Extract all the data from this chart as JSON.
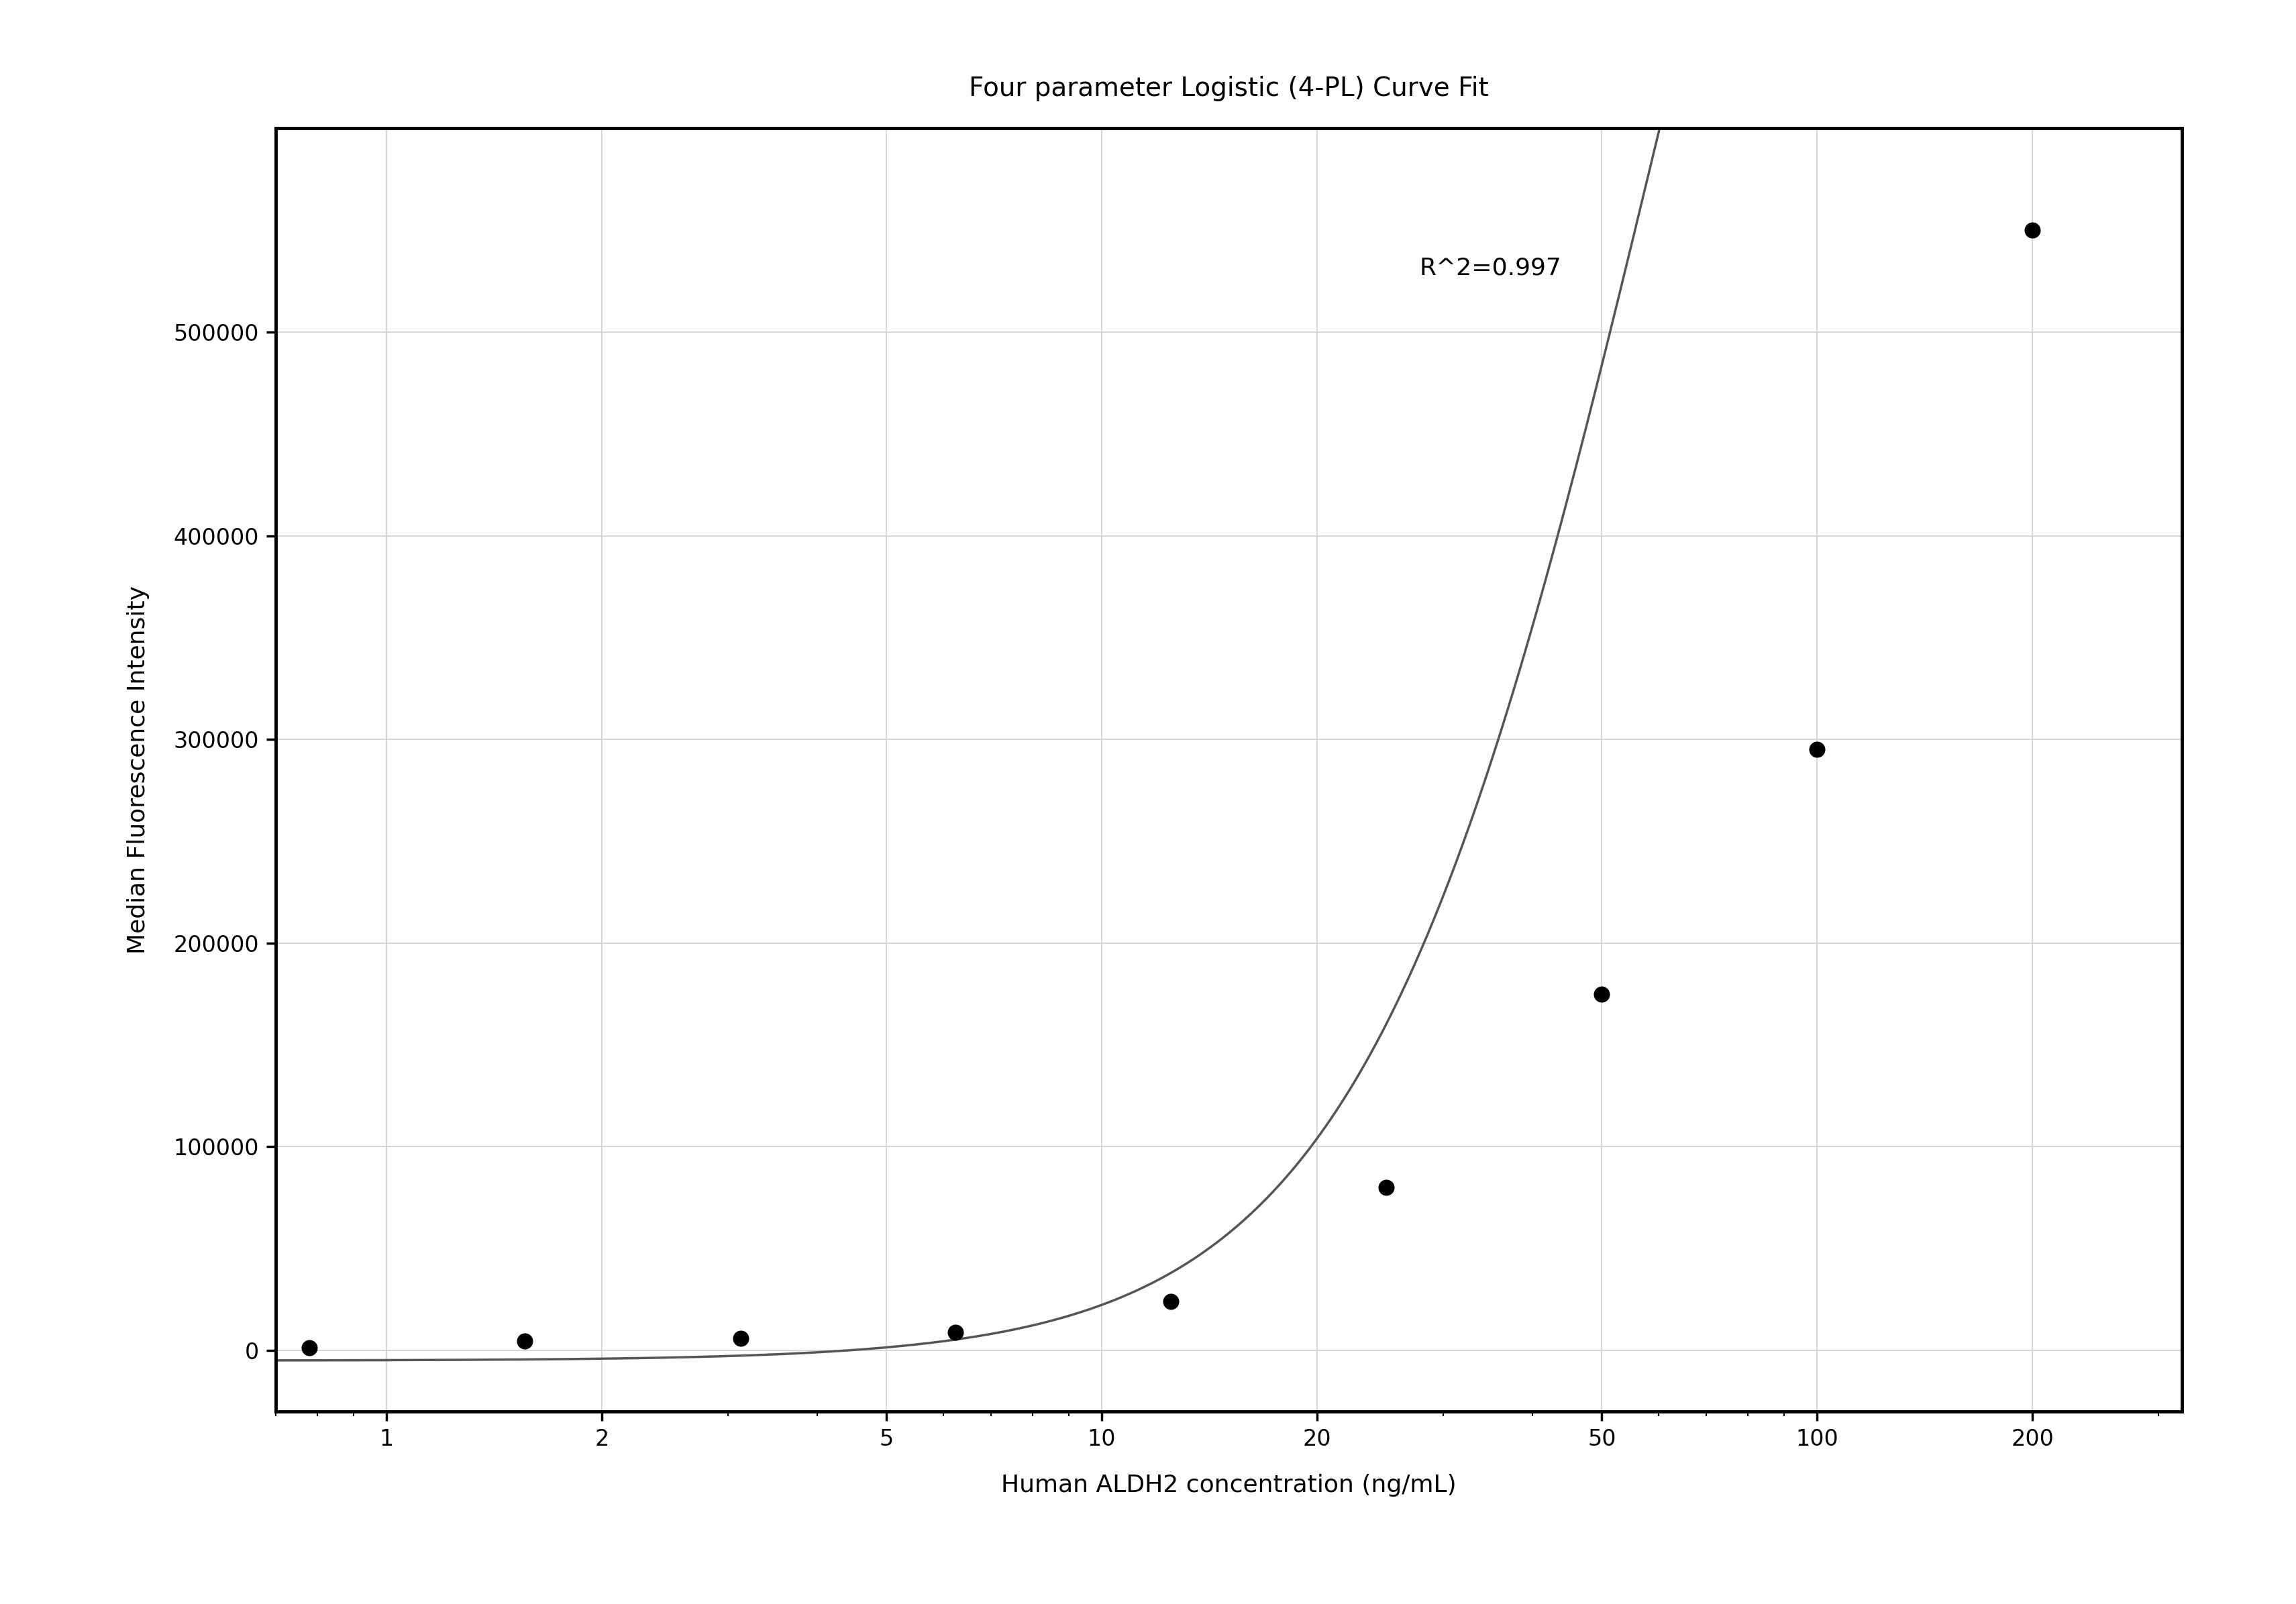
{
  "title": "Four parameter Logistic (4-PL) Curve Fit",
  "xlabel": "Human ALDH2 concentration (ng/mL)",
  "ylabel": "Median Fluorescence Intensity",
  "r_squared": "R^2=0.997",
  "scatter_x": [
    0.78,
    1.56,
    3.13,
    6.25,
    12.5,
    25,
    50,
    100,
    200
  ],
  "scatter_y": [
    1200,
    4500,
    6000,
    9000,
    24000,
    80000,
    175000,
    295000,
    550000
  ],
  "x_ticks": [
    1,
    2,
    5,
    10,
    20,
    50,
    100,
    200
  ],
  "xlim_log": [
    -0.155,
    2.51
  ],
  "ylim": [
    -30000,
    600000
  ],
  "y_ticks": [
    0,
    100000,
    200000,
    300000,
    400000,
    500000
  ],
  "title_fontsize": 28,
  "label_fontsize": 26,
  "tick_fontsize": 24,
  "annotation_fontsize": 26,
  "scatter_color": "#000000",
  "line_color": "#555555",
  "grid_color": "#d0d0d0",
  "background_color": "#ffffff",
  "4pl_A": -5000,
  "4pl_B": 2.1,
  "4pl_C": 60,
  "4pl_D": 1200000
}
